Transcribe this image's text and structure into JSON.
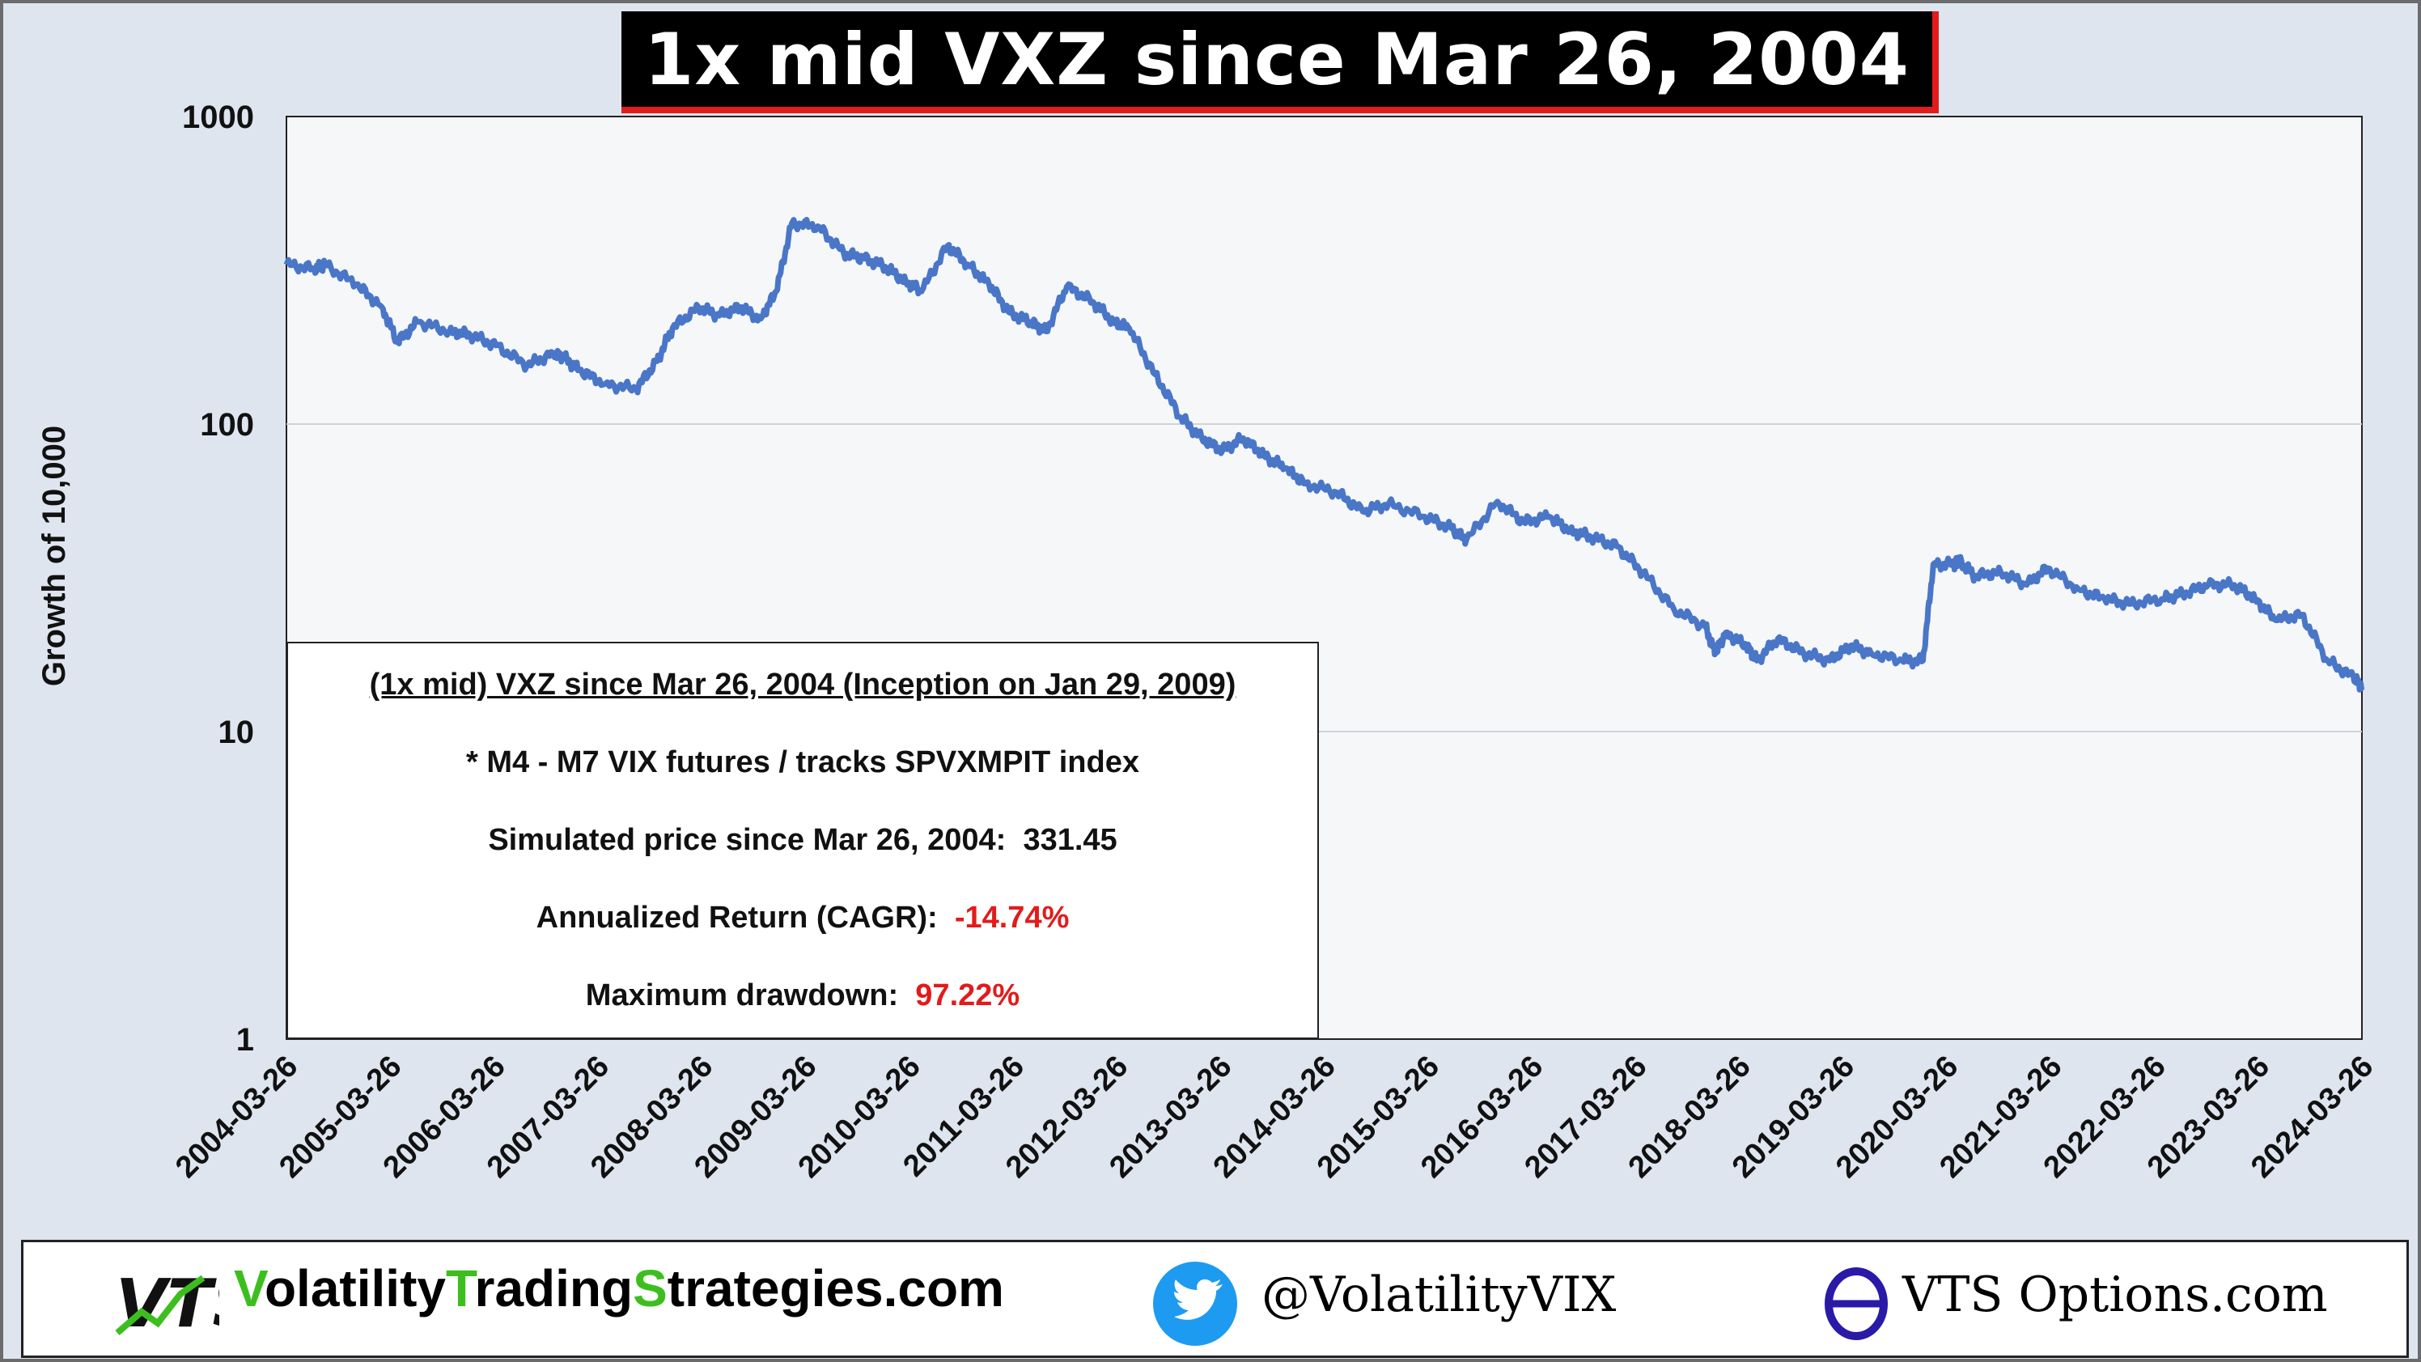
{
  "title": "1x mid VXZ since Mar 26, 2004",
  "colors": {
    "series": "#4a76c8",
    "accent_red": "#e21b1b",
    "title_bg": "#000000",
    "frame_bg": "#dfe5ef",
    "plot_bg": "#f6f7f9"
  },
  "chart_data": {
    "type": "line",
    "scale": "log",
    "title": "1x mid VXZ since Mar 26, 2004",
    "xlabel": "",
    "ylabel": "Growth of 10,000",
    "ylim": [
      1,
      1000
    ],
    "y_ticks": [
      "1",
      "10",
      "100",
      "1000"
    ],
    "x_ticks": [
      "2004-03-26",
      "2005-03-26",
      "2006-03-26",
      "2007-03-26",
      "2008-03-26",
      "2009-03-26",
      "2010-03-26",
      "2011-03-26",
      "2012-03-26",
      "2013-03-26",
      "2014-03-26",
      "2015-03-26",
      "2016-03-26",
      "2017-03-26",
      "2018-03-26",
      "2019-03-26",
      "2020-03-26",
      "2021-03-26",
      "2022-03-26",
      "2023-03-26",
      "2024-03-26"
    ],
    "grid": true,
    "series": [
      {
        "name": "1x mid VXZ",
        "x": [
          2004.23,
          2004.5,
          2004.6,
          2004.9,
          2005.15,
          2005.3,
          2005.5,
          2005.8,
          2006.0,
          2006.25,
          2006.55,
          2006.8,
          2006.9,
          2007.05,
          2007.3,
          2007.6,
          2007.8,
          2007.95,
          2008.2,
          2008.4,
          2008.6,
          2008.8,
          2008.95,
          2009.1,
          2009.35,
          2009.6,
          2009.8,
          2010.0,
          2010.2,
          2010.35,
          2010.6,
          2010.8,
          2011.0,
          2011.2,
          2011.4,
          2011.55,
          2011.75,
          2012.0,
          2012.2,
          2012.35,
          2012.6,
          2012.85,
          2013.05,
          2013.25,
          2013.45,
          2013.65,
          2013.85,
          2014.05,
          2014.35,
          2014.6,
          2014.85,
          2015.2,
          2015.45,
          2015.6,
          2015.9,
          2016.15,
          2016.4,
          2016.6,
          2016.8,
          2017.05,
          2017.3,
          2017.6,
          2017.9,
          2018.0,
          2018.1,
          2018.3,
          2018.4,
          2018.6,
          2018.85,
          2019.1,
          2019.3,
          2019.5,
          2019.8,
          2020.0,
          2020.1,
          2020.3,
          2020.35,
          2020.5,
          2020.75,
          2021.0,
          2021.2,
          2021.5,
          2021.75,
          2022.0,
          2022.3,
          2022.5,
          2022.75,
          2023.0,
          2023.2,
          2023.4,
          2023.65,
          2023.9,
          2024.15,
          2024.23
        ],
        "values": [
          330,
          320,
          330,
          285,
          240,
          185,
          215,
          200,
          195,
          180,
          155,
          170,
          165,
          150,
          135,
          130,
          160,
          205,
          240,
          225,
          240,
          220,
          270,
          450,
          440,
          360,
          345,
          325,
          290,
          270,
          380,
          330,
          285,
          230,
          215,
          200,
          280,
          250,
          215,
          205,
          145,
          105,
          90,
          82,
          90,
          79,
          72,
          64,
          60,
          52,
          55,
          50,
          46,
          42,
          56,
          48,
          50,
          45,
          43,
          40,
          33,
          25,
          22,
          18,
          21,
          19,
          17,
          20,
          18,
          17,
          19,
          18,
          17,
          17,
          35,
          35,
          36,
          32,
          33,
          30,
          34,
          29,
          27,
          26,
          27,
          28,
          30,
          30,
          27,
          23,
          24,
          17,
          15,
          14
        ]
      }
    ],
    "annotations": {
      "heading": "(1x mid) VXZ since Mar 26, 2004   (Inception on Jan 29, 2009)",
      "futures_line": "* M4 - M7 VIX futures  /  tracks SPVXMPIT index",
      "price_label": "Simulated price since Mar 26, 2004:",
      "price_value": "331.45",
      "cagr_label": "Annualized Return  (CAGR):",
      "cagr_value": "-14.74%",
      "drawdown_label": "Maximum drawdown:",
      "drawdown_value": "97.22%"
    }
  },
  "footer": {
    "logo_text": "VTS",
    "site_parts": [
      "V",
      "olatility",
      "T",
      "rading",
      "S",
      "trategies.com"
    ],
    "twitter_handle": "@VolatilityVIX",
    "options_site": "VTS Options.com"
  }
}
